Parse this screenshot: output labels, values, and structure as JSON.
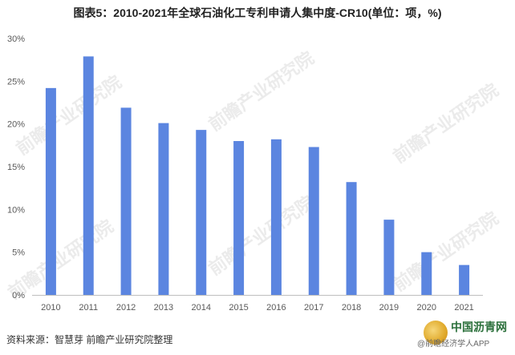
{
  "chart_data": {
    "type": "bar",
    "title": "图表5：2010-2021年全球石油化工专利申请人集中度-CR10(单位：项，%)",
    "categories": [
      "2010",
      "2011",
      "2012",
      "2013",
      "2014",
      "2015",
      "2016",
      "2017",
      "2018",
      "2019",
      "2020",
      "2021"
    ],
    "values": [
      24.2,
      27.9,
      21.9,
      20.1,
      19.3,
      18.0,
      18.2,
      17.3,
      13.2,
      8.8,
      5.0,
      3.5
    ],
    "ylim": [
      0,
      30
    ],
    "yticks": [
      "0%",
      "5%",
      "10%",
      "15%",
      "20%",
      "25%",
      "30%"
    ],
    "grid": false,
    "legend": "none",
    "bar_color": "#5b85e0",
    "axis_color": "#bfbfbf"
  },
  "footer": {
    "source": "资料来源：智慧芽 前瞻产业研究院整理",
    "logo_name": "中国沥青网",
    "logo_sub": "@前瞻经济学人APP"
  },
  "watermark": "前瞻产业研究院"
}
